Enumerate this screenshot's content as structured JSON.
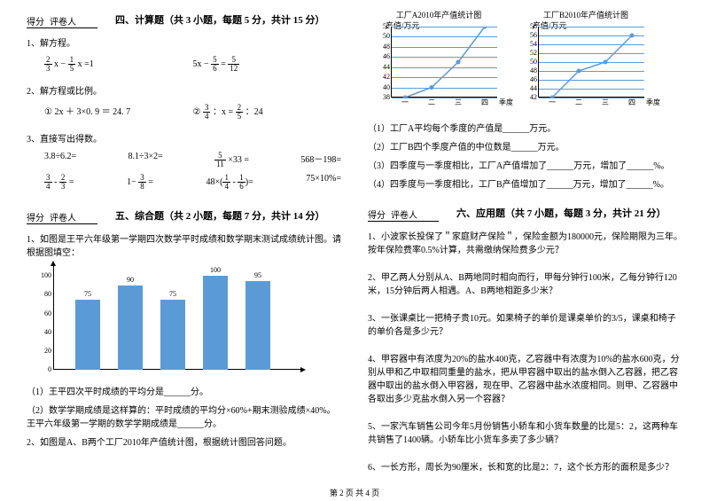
{
  "scorer": {
    "score": "得分",
    "grader": "评卷人"
  },
  "sec4": {
    "title": "四、计算题（共 3 小题，每题 5 分，共计 15 分）",
    "q1": "1、解方程。",
    "eq1a_left": " x − ",
    "eq1a_right": " x =1",
    "eq1b": "5x − ",
    "eq1b_rhs": " = ",
    "q2": "2、解方程或比例。",
    "eq2a": "① 2x ＋ 3×0. 9 ＝ 24. 7",
    "eq2b_pre": "② ",
    "eq2b_mid": " ：x = ",
    "eq2b_post": " ：24",
    "q3": "3、直接写出得数。",
    "row1": {
      "a": "3.8÷6.2=",
      "b": "8.1÷3×2=",
      "c_pre": "",
      "c_post": " ×33 =",
      "d": "568－198="
    },
    "row2": {
      "a_pre": "",
      "a_mid": " - ",
      "a_post": " =",
      "b_pre": "1− ",
      "b_post": " =",
      "c_pre": "48×(",
      "c_mid": " - ",
      "c_post": ")=",
      "d": "75×10%="
    }
  },
  "sec5": {
    "title": "五、综合题（共 2 小题，每题 7 分，共计 14 分）",
    "q1": "1、如图是王平六年级第一学期四次数学平时成绩和数学期末测试成绩统计图。请根据图填空：",
    "bar": {
      "ymax": 100,
      "ystep": 20,
      "yticks": [
        "0",
        "20",
        "40",
        "60",
        "80",
        "100"
      ],
      "values": [
        75,
        90,
        75,
        100,
        95
      ],
      "labels": [
        "75",
        "90",
        "75",
        "100",
        "95"
      ],
      "color": "#5b9bd5"
    },
    "q1_1": "（1）王平四次平时成绩的平均分是______分。",
    "q1_2": "（2）数学学期成绩是这样算的：平时成绩的平均分×60%+期末测验成绩×40%。王平六年级第一学期的数学学期成绩是______分。",
    "q2": "2、如图是A、B两个工厂2010年产值统计图，根据统计图回答问题。"
  },
  "lineA": {
    "title": "工厂A2010年产值统计图",
    "ylabel": "产值/万元",
    "yticks": [
      "38",
      "40",
      "42",
      "44",
      "46",
      "48",
      "50",
      "52"
    ],
    "xticks": [
      "一",
      "二",
      "三",
      "四"
    ],
    "xlabel": "季度",
    "points": [
      [
        0,
        38
      ],
      [
        1,
        40
      ],
      [
        2,
        45
      ],
      [
        3,
        52
      ]
    ]
  },
  "lineB": {
    "title": "工厂B2010年产值统计图",
    "ylabel": "产值/万元",
    "yticks": [
      "42",
      "44",
      "46",
      "48",
      "50",
      "52",
      "54",
      "56",
      "58"
    ],
    "xticks": [
      "一",
      "二",
      "三",
      "四"
    ],
    "xlabel": "季度",
    "points": [
      [
        0,
        42
      ],
      [
        1,
        48
      ],
      [
        2,
        50
      ],
      [
        3,
        56
      ]
    ]
  },
  "lineQ": {
    "a": "（1）工厂A平均每个季度的产值是______万元。",
    "b": "（2）工厂B四个季度产值的中位数是______万元。",
    "c": "（3）四季度与一季度相比，工厂A产值增加了______万元，增加了______%。",
    "d": "（4）四季度与一季度相比，工厂B产值增加了______万元，增加了______%。"
  },
  "sec6": {
    "title": "六、应用题（共 7 小题，每题 3 分，共计 21 分）",
    "q1": "1、小波家长投保了＂家庭财产保险＂，保险金额为180000元，保险期限为三年。按年保险费率0.5%计算，共需缴纳保险费多少元？",
    "q2": "2、甲乙两人分别从A、B两地同时相向而行，甲每分钟行100米，乙每分钟行120米，15分钟后两人相遇。A、B两地相距多少米？",
    "q3": "3、一张课桌比一把椅子贵10元。如果椅子的单价是课桌单价的3/5，课桌和椅子的单价各是多少元？",
    "q4": "4、甲容器中有浓度为20%的盐水400克，乙容器中有浓度为10%的盐水600克，分别从甲和乙中取相同重量的盐水，把从甲容器中取出的盐水倒入乙容器，把乙容器中取出的盐水倒入甲容器，现在甲、乙容器中盐水浓度相同。则甲、乙容器中各取出多少克盐水倒入另一个容器？",
    "q5": "5、一家汽车销售公司今年5月份销售小轿车和小货车数量的比是5：2，这两种车共销售了1400辆。小轿车比小货车多卖了多少辆？",
    "q6": "6、一长方形，周长为90厘米，长和宽的比是2：7，这个长方形的面积是多少？"
  },
  "footer": "第 2 页 共 4 页"
}
